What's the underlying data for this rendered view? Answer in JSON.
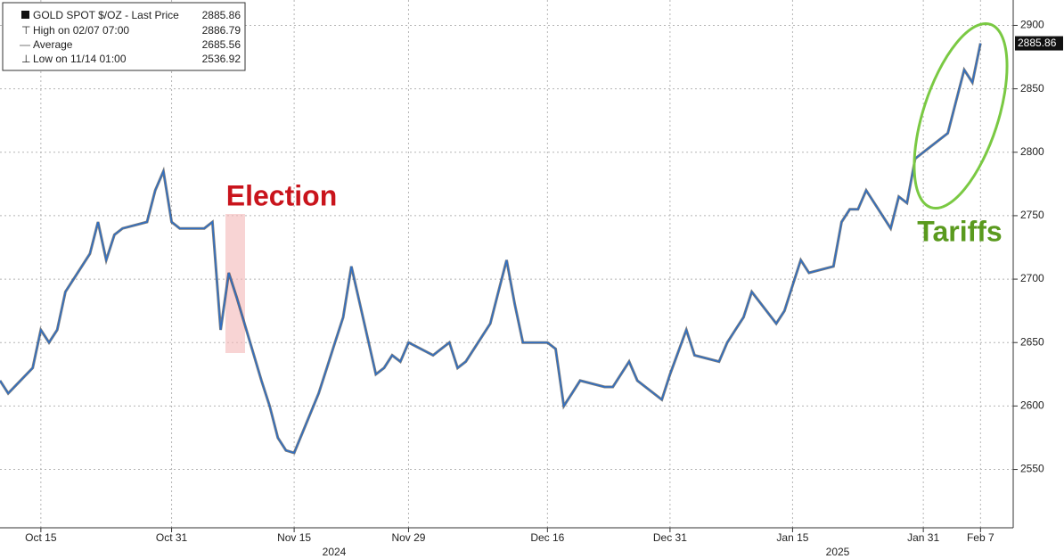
{
  "chart_data": {
    "type": "line",
    "legend": {
      "name": "GOLD SPOT $/OZ - Last Price",
      "last": 2885.86,
      "stats": [
        {
          "label": "High on 02/07 07:00",
          "value": 2886.79
        },
        {
          "label": "Average",
          "value": 2685.56
        },
        {
          "label": "Low on 11/14 01:00",
          "value": 2536.92
        }
      ]
    },
    "annotations": [
      "Election",
      "Tariffs"
    ],
    "x_group_labels": [
      "2024",
      "2025"
    ],
    "x": [
      "2024-10-10",
      "2024-10-11",
      "2024-10-14",
      "2024-10-15",
      "2024-10-16",
      "2024-10-17",
      "2024-10-18",
      "2024-10-21",
      "2024-10-22",
      "2024-10-23",
      "2024-10-24",
      "2024-10-25",
      "2024-10-28",
      "2024-10-29",
      "2024-10-30",
      "2024-10-31",
      "2024-11-01",
      "2024-11-04",
      "2024-11-05",
      "2024-11-06",
      "2024-11-07",
      "2024-11-08",
      "2024-11-11",
      "2024-11-12",
      "2024-11-13",
      "2024-11-14",
      "2024-11-15",
      "2024-11-18",
      "2024-11-19",
      "2024-11-20",
      "2024-11-21",
      "2024-11-22",
      "2024-11-25",
      "2024-11-26",
      "2024-11-27",
      "2024-11-28",
      "2024-11-29",
      "2024-12-02",
      "2024-12-03",
      "2024-12-04",
      "2024-12-05",
      "2024-12-06",
      "2024-12-09",
      "2024-12-10",
      "2024-12-11",
      "2024-12-12",
      "2024-12-13",
      "2024-12-16",
      "2024-12-17",
      "2024-12-18",
      "2024-12-19",
      "2024-12-20",
      "2024-12-23",
      "2024-12-24",
      "2024-12-26",
      "2024-12-27",
      "2024-12-30",
      "2024-12-31",
      "2025-01-02",
      "2025-01-03",
      "2025-01-06",
      "2025-01-07",
      "2025-01-08",
      "2025-01-09",
      "2025-01-10",
      "2025-01-13",
      "2025-01-14",
      "2025-01-15",
      "2025-01-16",
      "2025-01-17",
      "2025-01-20",
      "2025-01-21",
      "2025-01-22",
      "2025-01-23",
      "2025-01-24",
      "2025-01-27",
      "2025-01-28",
      "2025-01-29",
      "2025-01-30",
      "2025-01-31",
      "2025-02-03",
      "2025-02-04",
      "2025-02-05",
      "2025-02-06",
      "2025-02-07"
    ],
    "series": [
      {
        "name": "GOLD SPOT $/OZ",
        "color": "#2f6fc4",
        "values": [
          2620,
          2610,
          2630,
          2660,
          2650,
          2660,
          2690,
          2720,
          2745,
          2715,
          2735,
          2740,
          2745,
          2770,
          2785,
          2745,
          2740,
          2740,
          2745,
          2660,
          2705,
          2685,
          2620,
          2600,
          2575,
          2565,
          2563,
          2610,
          2630,
          2650,
          2670,
          2710,
          2625,
          2630,
          2640,
          2635,
          2650,
          2640,
          2645,
          2650,
          2630,
          2635,
          2665,
          2690,
          2715,
          2680,
          2650,
          2650,
          2645,
          2600,
          2610,
          2620,
          2615,
          2615,
          2635,
          2620,
          2605,
          2625,
          2660,
          2640,
          2635,
          2650,
          2660,
          2670,
          2690,
          2665,
          2675,
          2695,
          2715,
          2705,
          2710,
          2745,
          2755,
          2755,
          2770,
          2740,
          2765,
          2760,
          2795,
          2800,
          2815,
          2840,
          2865,
          2855,
          2885.86
        ]
      }
    ],
    "xlim": [
      "2024-10-10",
      "2025-02-11"
    ],
    "xticks": [
      {
        "value": "2024-10-15",
        "label": "Oct 15"
      },
      {
        "value": "2024-10-31",
        "label": "Oct 31"
      },
      {
        "value": "2024-11-15",
        "label": "Nov 15"
      },
      {
        "value": "2024-11-29",
        "label": "Nov 29"
      },
      {
        "value": "2024-12-16",
        "label": "Dec 16"
      },
      {
        "value": "2024-12-31",
        "label": "Dec 31"
      },
      {
        "value": "2025-01-15",
        "label": "Jan 15"
      },
      {
        "value": "2025-01-31",
        "label": "Jan 31"
      },
      {
        "value": "2025-02-07",
        "label": "Feb 7"
      }
    ],
    "ylim": [
      2504,
      2920
    ],
    "yticks": [
      2550,
      2600,
      2650,
      2700,
      2750,
      2800,
      2850,
      2900
    ],
    "grid": true
  }
}
